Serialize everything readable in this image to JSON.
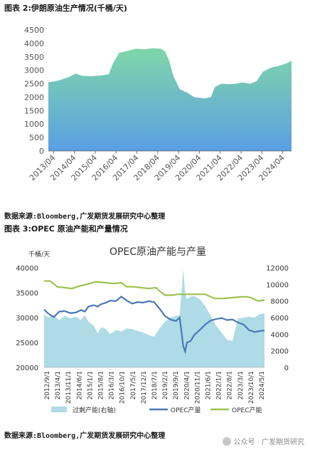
{
  "fig2": {
    "label": "图表 2:伊朗原油生产情况(千桶/天)",
    "source": "数据来源:Bloomberg,广发期货发展研究中心整理"
  },
  "fig3": {
    "label": "图表 3:OPEC 原油产能和产量情况",
    "source": "数据来源:Bloomberg,广发期货发展研究中心整理"
  },
  "watermark": "公众号 · 广发期货研究",
  "colors": {
    "area_top": "#7fd6a8",
    "area_bottom": "#5b9fe4",
    "spare": "#aedbe6",
    "opec_prod": "#4a78b8",
    "opec_cap": "#9bc34d"
  },
  "chart_data": [
    {
      "type": "area",
      "title": "",
      "ylim": [
        0,
        4500
      ],
      "yticks": [
        "0",
        "500",
        "1000",
        "1500",
        "2000",
        "2500",
        "3000",
        "3500",
        "4000",
        "4500"
      ],
      "xticks": [
        "2013/04",
        "2014/04",
        "2015/04",
        "2016/04",
        "2017/04",
        "2018/04",
        "2019/04",
        "2020/04",
        "2021/04",
        "2022/04",
        "2023/04",
        "2024/04"
      ],
      "xrange": [
        2013.0,
        2024.67
      ],
      "x": [
        2013.0,
        2013.5,
        2014.0,
        2014.3,
        2014.6,
        2015.0,
        2015.5,
        2015.9,
        2016.1,
        2016.4,
        2016.8,
        2017.2,
        2017.6,
        2018.0,
        2018.4,
        2018.6,
        2018.8,
        2019.0,
        2019.3,
        2019.7,
        2020.0,
        2020.5,
        2020.8,
        2021.0,
        2021.3,
        2021.7,
        2022.0,
        2022.3,
        2022.7,
        2023.0,
        2023.3,
        2023.7,
        2024.0,
        2024.4,
        2024.67
      ],
      "values": [
        2550,
        2620,
        2750,
        2880,
        2800,
        2780,
        2800,
        2850,
        3250,
        3650,
        3720,
        3800,
        3780,
        3820,
        3800,
        3700,
        3350,
        2800,
        2300,
        2150,
        2000,
        1950,
        2000,
        2380,
        2500,
        2480,
        2500,
        2550,
        2500,
        2600,
        2950,
        3100,
        3150,
        3250,
        3350
      ],
      "series": [
        {
          "values": "values"
        }
      ]
    },
    {
      "type": "line",
      "title": "OPEC原油产能与产量",
      "y_left_label": "千桶/天",
      "ylim_left": [
        20000,
        40000
      ],
      "ylim_right": [
        0,
        12000
      ],
      "yticks_left": [
        "20000",
        "25000",
        "30000",
        "35000",
        "40000"
      ],
      "yticks_right": [
        "0",
        "2000",
        "4000",
        "6000",
        "8000",
        "10000",
        "12000"
      ],
      "xticks": [
        "2012/9/1",
        "2013/4/1",
        "2013/11/1",
        "2014/6/1",
        "2015/1/1",
        "2015/8/1",
        "2016/3/1",
        "2016/10/1",
        "2017/5/1",
        "2017/12/1",
        "2018/7/1",
        "2019/2/1",
        "2019/9/1",
        "2020/4/1",
        "2020/11/1",
        "2021/6/1",
        "2022/1/1",
        "2022/8/1",
        "2023/3/1",
        "2023/10/1",
        "2024/5/1"
      ],
      "xrange": [
        2012.67,
        2024.75
      ],
      "legend_position": "bottom",
      "series": [
        {
          "name": "过剩产能(右轴)",
          "kind": "area",
          "axis": "right",
          "x": [
            2012.67,
            2012.9,
            2013.2,
            2013.5,
            2013.8,
            2014.1,
            2014.4,
            2014.7,
            2014.9,
            2015.1,
            2015.4,
            2015.6,
            2015.8,
            2016.0,
            2016.3,
            2016.6,
            2016.9,
            2017.2,
            2017.5,
            2017.8,
            2018.1,
            2018.4,
            2018.7,
            2019.0,
            2019.3,
            2019.6,
            2019.9,
            2020.1,
            2020.3,
            2020.4,
            2020.5,
            2020.7,
            2020.9,
            2021.2,
            2021.5,
            2021.8,
            2022.1,
            2022.4,
            2022.7,
            2023.0,
            2023.3,
            2023.6,
            2023.9,
            2024.2,
            2024.5,
            2024.75
          ],
          "values": [
            6400,
            6000,
            6300,
            5700,
            6200,
            5900,
            6100,
            5700,
            6300,
            5500,
            5000,
            4100,
            4800,
            4700,
            4000,
            4500,
            4300,
            4700,
            4600,
            4400,
            4200,
            3900,
            3700,
            4700,
            5500,
            6000,
            6200,
            6300,
            11800,
            9000,
            8200,
            8500,
            8600,
            8200,
            7400,
            6200,
            5000,
            4200,
            3300,
            3200,
            5900,
            6000,
            6100,
            6000,
            6400,
            6500
          ]
        },
        {
          "name": "OPEC产量",
          "kind": "line",
          "axis": "left",
          "x": [
            2012.67,
            2012.9,
            2013.2,
            2013.5,
            2013.8,
            2014.1,
            2014.4,
            2014.7,
            2014.9,
            2015.1,
            2015.4,
            2015.6,
            2015.8,
            2016.0,
            2016.3,
            2016.6,
            2016.9,
            2017.2,
            2017.5,
            2017.8,
            2018.1,
            2018.4,
            2018.7,
            2019.0,
            2019.3,
            2019.6,
            2019.9,
            2020.1,
            2020.3,
            2020.4,
            2020.5,
            2020.7,
            2020.9,
            2021.2,
            2021.5,
            2021.8,
            2022.1,
            2022.4,
            2022.7,
            2023.0,
            2023.3,
            2023.6,
            2023.9,
            2024.2,
            2024.5,
            2024.75
          ],
          "values": [
            31600,
            30800,
            30100,
            31200,
            31300,
            30900,
            31000,
            31500,
            31200,
            32200,
            32500,
            32200,
            32700,
            32900,
            33400,
            33300,
            34200,
            33400,
            32800,
            33100,
            33000,
            33300,
            33100,
            31800,
            30300,
            29600,
            29300,
            30000,
            24200,
            23200,
            25000,
            25300,
            26500,
            27500,
            28600,
            29400,
            29700,
            29900,
            29500,
            29600,
            29000,
            28600,
            27500,
            27100,
            27300,
            27400
          ]
        },
        {
          "name": "OPEC产能",
          "kind": "line",
          "axis": "right",
          "x": [
            2012.67,
            2013.0,
            2013.4,
            2013.8,
            2014.2,
            2014.6,
            2015.0,
            2015.5,
            2016.0,
            2016.5,
            2016.9,
            2017.2,
            2017.6,
            2018.0,
            2018.4,
            2018.8,
            2019.0,
            2019.3,
            2019.7,
            2020.0,
            2020.5,
            2021.0,
            2021.5,
            2022.0,
            2022.5,
            2023.0,
            2023.5,
            2023.8,
            2024.0,
            2024.4,
            2024.75
          ],
          "values": [
            10400,
            10400,
            9700,
            9600,
            9500,
            9800,
            10000,
            10300,
            10200,
            10100,
            10200,
            9700,
            9700,
            9600,
            9500,
            9600,
            9200,
            8700,
            8700,
            8800,
            8800,
            8800,
            8800,
            8300,
            8300,
            8400,
            8500,
            8500,
            8400,
            8000,
            8100
          ]
        }
      ]
    }
  ]
}
